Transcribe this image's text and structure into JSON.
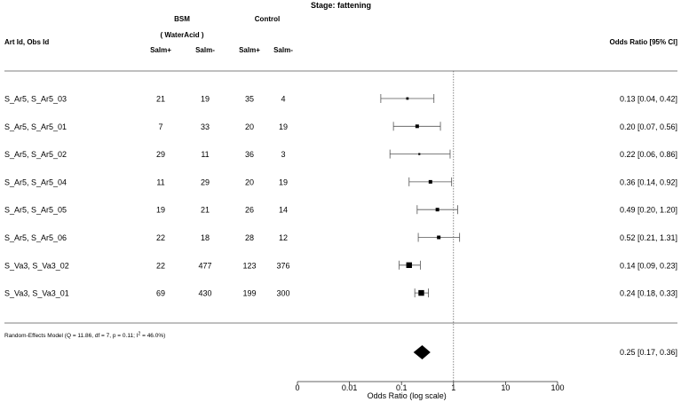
{
  "chart_data": {
    "type": "forest",
    "title": "Stage: fattening",
    "col_art": "Art Id, Obs Id",
    "group_bsm": "BSM",
    "group_bsm_sub": "( WaterAcid )",
    "group_control": "Control",
    "col_salm_plus": "Salm+",
    "col_salm_minus": "Salm-",
    "col_or": "Odds Ratio [95% CI]",
    "xlabel": "Odds Ratio (log scale)",
    "x_scale": "log",
    "x_ticks": [
      {
        "value": 0.001,
        "label": "0"
      },
      {
        "value": 0.01,
        "label": "0.01"
      },
      {
        "value": 0.1,
        "label": "0.1"
      },
      {
        "value": 1,
        "label": "1"
      },
      {
        "value": 10,
        "label": "10"
      },
      {
        "value": 100,
        "label": "100"
      }
    ],
    "ref_line": 1,
    "studies": [
      {
        "label": "S_Ar5, S_Ar5_03",
        "bsm_pos": "21",
        "bsm_neg": "19",
        "ctl_pos": "35",
        "ctl_neg": "4",
        "or": 0.13,
        "lo": 0.04,
        "hi": 0.42,
        "weight": 1,
        "text": "0.13 [0.04, 0.42]"
      },
      {
        "label": "S_Ar5, S_Ar5_01",
        "bsm_pos": "7",
        "bsm_neg": "33",
        "ctl_pos": "20",
        "ctl_neg": "19",
        "or": 0.2,
        "lo": 0.07,
        "hi": 0.56,
        "weight": 2,
        "text": "0.20 [0.07, 0.56]"
      },
      {
        "label": "S_Ar5, S_Ar5_02",
        "bsm_pos": "29",
        "bsm_neg": "11",
        "ctl_pos": "36",
        "ctl_neg": "3",
        "or": 0.22,
        "lo": 0.06,
        "hi": 0.86,
        "weight": 0.5,
        "text": "0.22 [0.06, 0.86]"
      },
      {
        "label": "S_Ar5, S_Ar5_04",
        "bsm_pos": "11",
        "bsm_neg": "29",
        "ctl_pos": "20",
        "ctl_neg": "19",
        "or": 0.36,
        "lo": 0.14,
        "hi": 0.92,
        "weight": 2,
        "text": "0.36 [0.14, 0.92]"
      },
      {
        "label": "S_Ar5, S_Ar5_05",
        "bsm_pos": "19",
        "bsm_neg": "21",
        "ctl_pos": "26",
        "ctl_neg": "14",
        "or": 0.49,
        "lo": 0.2,
        "hi": 1.2,
        "weight": 2,
        "text": "0.49 [0.20, 1.20]"
      },
      {
        "label": "S_Ar5, S_Ar5_06",
        "bsm_pos": "22",
        "bsm_neg": "18",
        "ctl_pos": "28",
        "ctl_neg": "12",
        "or": 0.52,
        "lo": 0.21,
        "hi": 1.31,
        "weight": 2,
        "text": "0.52 [0.21, 1.31]"
      },
      {
        "label": "S_Va3, S_Va3_02",
        "bsm_pos": "22",
        "bsm_neg": "477",
        "ctl_pos": "123",
        "ctl_neg": "376",
        "or": 0.14,
        "lo": 0.09,
        "hi": 0.23,
        "weight": 4,
        "text": "0.14 [0.09, 0.23]"
      },
      {
        "label": "S_Va3, S_Va3_01",
        "bsm_pos": "69",
        "bsm_neg": "430",
        "ctl_pos": "199",
        "ctl_neg": "300",
        "or": 0.24,
        "lo": 0.18,
        "hi": 0.33,
        "weight": 4,
        "text": "0.24 [0.18, 0.33]"
      }
    ],
    "summary": {
      "label_pre": "Random-Effects Model (Q = 11.86, df = 7, p = 0.11; I",
      "label_sup": "2",
      "label_post": " = 46.0%)",
      "or": 0.25,
      "lo": 0.17,
      "hi": 0.36,
      "text": "0.25 [0.17, 0.36]"
    }
  }
}
